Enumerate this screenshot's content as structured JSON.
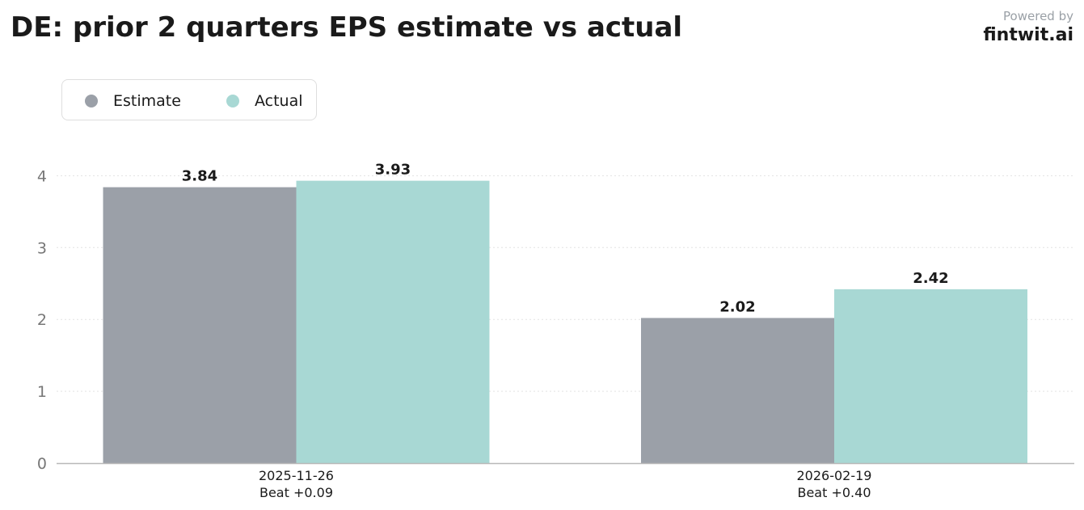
{
  "header": {
    "title": "DE: prior 2 quarters EPS estimate vs actual",
    "powered_by": "Powered by",
    "brand": "fintwit.ai"
  },
  "legend": {
    "items": [
      {
        "label": "Estimate",
        "color": "#9ba0a8"
      },
      {
        "label": "Actual",
        "color": "#a8d8d4"
      }
    ]
  },
  "chart_data": {
    "type": "bar",
    "title": "DE: prior 2 quarters EPS estimate vs actual",
    "categories": [
      "2025-11-26",
      "2026-02-19"
    ],
    "category_notes": [
      "Beat +0.09",
      "Beat +0.40"
    ],
    "series": [
      {
        "name": "Estimate",
        "color": "#9ba0a8",
        "values": [
          3.84,
          2.02
        ],
        "labels": [
          "3.84",
          "2.02"
        ]
      },
      {
        "name": "Actual",
        "color": "#a8d8d4",
        "values": [
          3.93,
          2.42
        ],
        "labels": [
          "3.93",
          "2.42"
        ]
      }
    ],
    "yticks": [
      "0",
      "1",
      "2",
      "3",
      "4"
    ],
    "ylim": [
      0,
      4.3
    ],
    "grid": true,
    "legend_position": "top-left"
  }
}
